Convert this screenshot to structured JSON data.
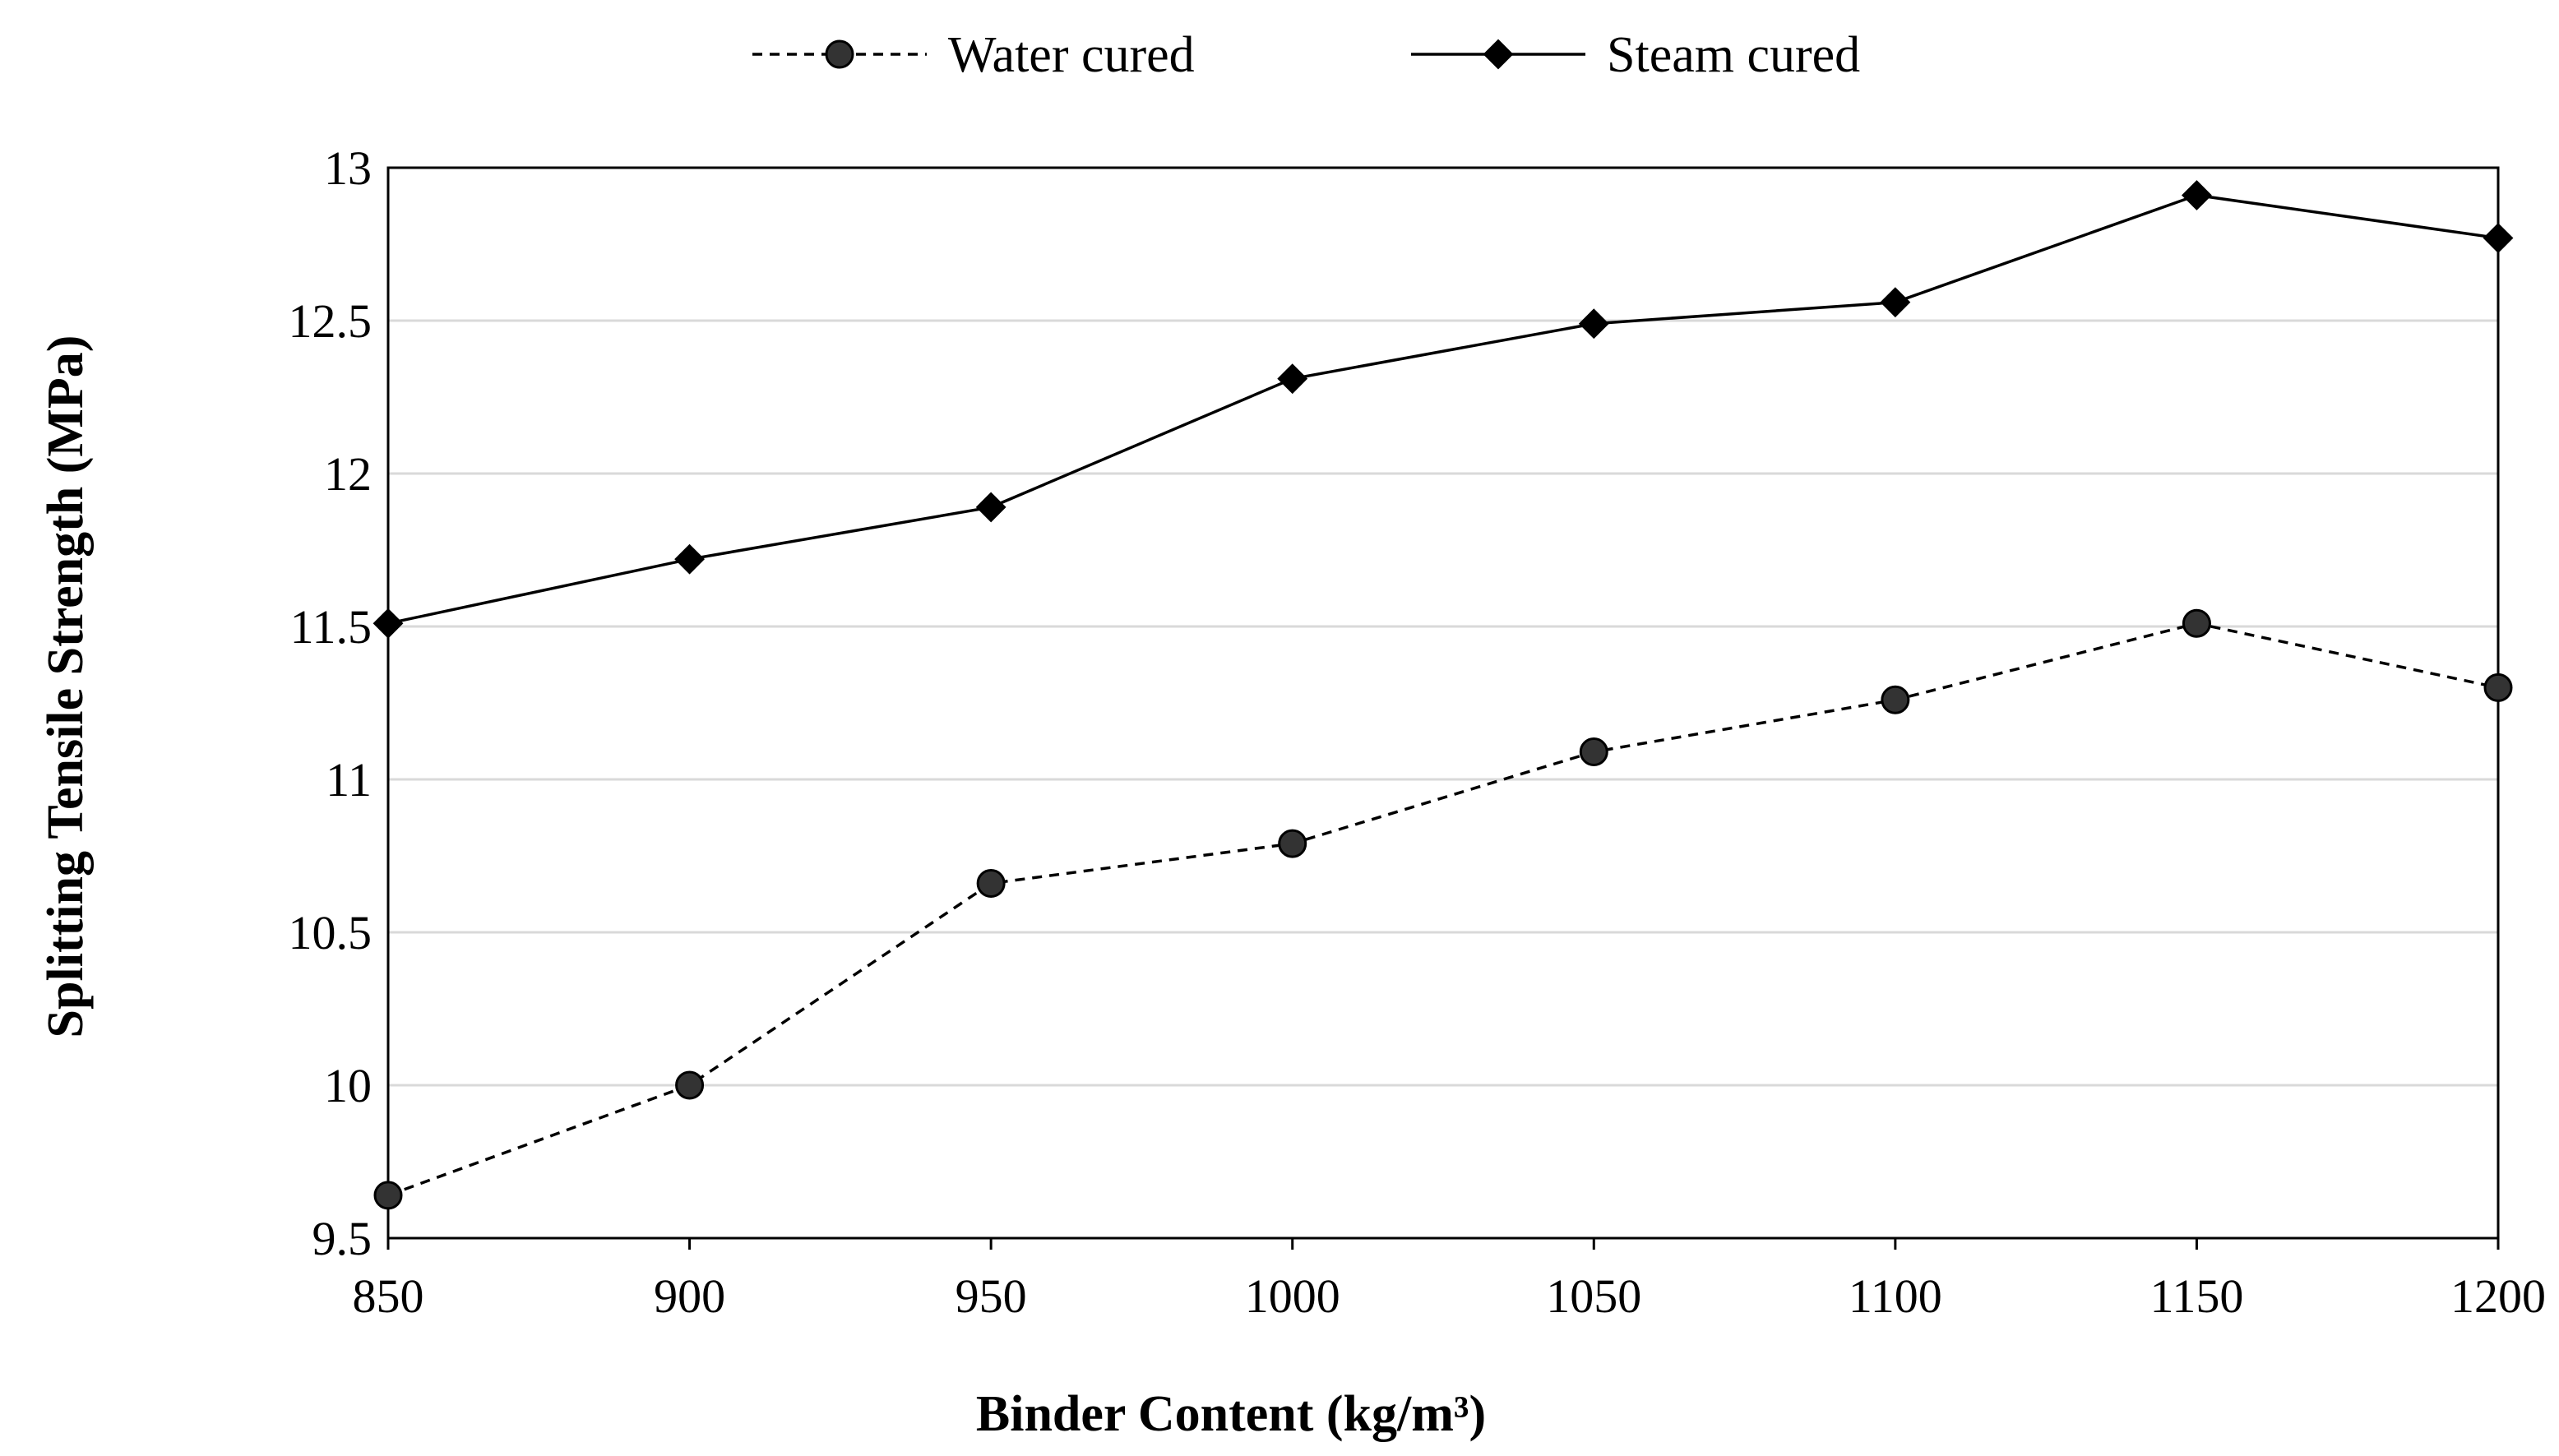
{
  "chart_data": {
    "type": "line",
    "title": "",
    "xlabel": "Binder  Content (kg/m³)",
    "ylabel": "Splitting Tensile Strength (MPa)",
    "x": [
      850,
      900,
      950,
      1000,
      1050,
      1100,
      1150,
      1200
    ],
    "xlim": [
      850,
      1200
    ],
    "ylim": [
      9.5,
      13
    ],
    "xticks": [
      "850",
      "900",
      "950",
      "1000",
      "1050",
      "1100",
      "1150",
      "1200"
    ],
    "yticks": [
      "9.5",
      "10",
      "10.5",
      "11",
      "11.5",
      "12",
      "12.5",
      "13"
    ],
    "grid": "horizontal",
    "legend_position": "top-center",
    "series": [
      {
        "name": "Water cured",
        "line_style": "dashed",
        "marker": "circle",
        "color": "#000000",
        "marker_fill": "#333333",
        "values": [
          9.64,
          10.0,
          10.66,
          10.79,
          11.09,
          11.26,
          11.51,
          11.3
        ]
      },
      {
        "name": "Steam cured",
        "line_style": "solid",
        "marker": "diamond",
        "color": "#000000",
        "marker_fill": "#000000",
        "values": [
          11.51,
          11.72,
          11.89,
          12.31,
          12.49,
          12.56,
          12.91,
          12.77
        ]
      }
    ]
  },
  "colors": {
    "grid": "#d9d9d9",
    "axis": "#000000"
  }
}
